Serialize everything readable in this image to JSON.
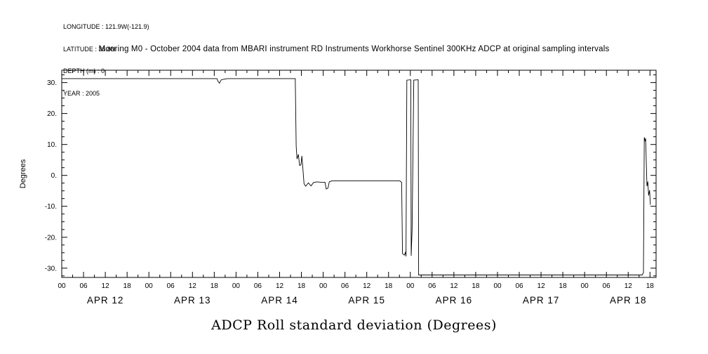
{
  "meta": {
    "lines": [
      "LONGITUDE : 121.9W(-121.9)",
      "LATITUDE : 36.8N",
      "DEPTH (m) : 0",
      "YEAR : 2005"
    ]
  },
  "chart_data": {
    "type": "line",
    "title": "ADCP Roll standard deviation (Degrees)",
    "subtitle": "Mooring M0 - October 2004 data from MBARI instrument RD Instruments Workhorse Sentinel 300KHz ADCP at original sampling intervals",
    "ylabel": "Degrees",
    "xlabel": "",
    "ylim": [
      -33,
      34
    ],
    "xlim_days": [
      0,
      6.82
    ],
    "x_unit": "days since 2005 APR 12 00:00",
    "grid": false,
    "legend": "none",
    "line_color": "#000000",
    "y_ticks": [
      30,
      20,
      10,
      0,
      -10,
      -20,
      -30
    ],
    "y_tick_labels": [
      "30.",
      "20.",
      "10.",
      "0.",
      "-10.",
      "-20.",
      "-30."
    ],
    "x_hour_tick_labels": [
      "00",
      "06",
      "12",
      "18"
    ],
    "day_labels": [
      "APR 12",
      "APR 13",
      "APR 14",
      "APR 15",
      "APR 16",
      "APR 17",
      "APR 18"
    ],
    "series": [
      {
        "name": "ADCP roll standard deviation",
        "points": [
          [
            0.0,
            31.3
          ],
          [
            1.78,
            31.3
          ],
          [
            1.795,
            30.3
          ],
          [
            1.81,
            29.8
          ],
          [
            1.83,
            30.9
          ],
          [
            1.86,
            31.1
          ],
          [
            1.9,
            31.3
          ],
          [
            2.68,
            31.3
          ],
          [
            2.69,
            9.5
          ],
          [
            2.7,
            5.3
          ],
          [
            2.715,
            6.8
          ],
          [
            2.73,
            3.2
          ],
          [
            2.745,
            3.4
          ],
          [
            2.755,
            6.3
          ],
          [
            2.765,
            2.9
          ],
          [
            2.78,
            -2.7
          ],
          [
            2.8,
            -3.5
          ],
          [
            2.83,
            -2.4
          ],
          [
            2.86,
            -3.4
          ],
          [
            2.89,
            -2.3
          ],
          [
            2.93,
            -2.1
          ],
          [
            3.0,
            -2.3
          ],
          [
            3.02,
            -2.2
          ],
          [
            3.035,
            -4.4
          ],
          [
            3.055,
            -4.1
          ],
          [
            3.07,
            -2.1
          ],
          [
            3.1,
            -1.8
          ],
          [
            3.88,
            -1.8
          ],
          [
            3.9,
            -2.3
          ],
          [
            3.91,
            -25.3
          ],
          [
            3.93,
            -25.8
          ],
          [
            3.945,
            -24.9
          ],
          [
            3.95,
            -26.2
          ],
          [
            3.96,
            30.8
          ],
          [
            4.005,
            30.9
          ],
          [
            4.01,
            -26.0
          ],
          [
            4.02,
            -17.5
          ],
          [
            4.04,
            30.8
          ],
          [
            4.09,
            30.9
          ],
          [
            4.095,
            -32.2
          ],
          [
            6.66,
            -32.2
          ],
          [
            6.675,
            -31.5
          ],
          [
            6.685,
            12.3
          ],
          [
            6.695,
            11.0
          ],
          [
            6.7,
            12.0
          ],
          [
            6.715,
            -3.5
          ],
          [
            6.725,
            -2.0
          ],
          [
            6.735,
            -6.5
          ],
          [
            6.745,
            -4.8
          ],
          [
            6.755,
            -9.5
          ]
        ]
      }
    ]
  }
}
